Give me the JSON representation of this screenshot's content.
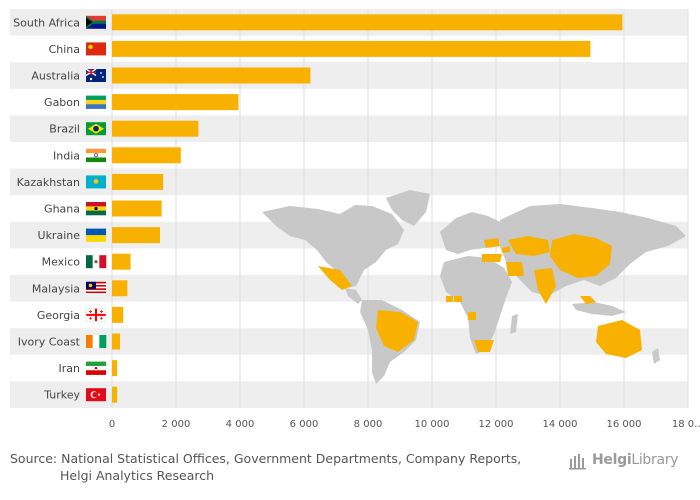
{
  "chart_data": {
    "type": "bar",
    "orientation": "horizontal",
    "categories": [
      "South Africa",
      "China",
      "Australia",
      "Gabon",
      "Brazil",
      "India",
      "Kazakhstan",
      "Ghana",
      "Ukraine",
      "Mexico",
      "Malaysia",
      "Georgia",
      "Ivory Coast",
      "Iran",
      "Turkey"
    ],
    "values": [
      15950,
      14950,
      6200,
      3950,
      2700,
      2150,
      1600,
      1550,
      1500,
      580,
      480,
      350,
      250,
      160,
      160
    ],
    "xlim": [
      0,
      18000
    ],
    "xticks": [
      0,
      2000,
      4000,
      6000,
      8000,
      10000,
      12000,
      14000,
      16000,
      18000
    ],
    "xtick_labels": [
      "0",
      "2 000",
      "4 000",
      "6 000",
      "8 000",
      "10 000",
      "12 000",
      "14 000",
      "16 000",
      "18 0…"
    ],
    "bar_color": "#F9B100",
    "highlight_color": "#F9B100",
    "map_color": "#C8C8C8",
    "row_band_color": "#EEEEEE",
    "grid": true,
    "title": "",
    "xlabel": "",
    "ylabel": ""
  },
  "footer": {
    "source_line1": "Source: National Statistical Offices, Government Departments, Company Reports,",
    "source_line2": "Helgi Analytics Research"
  },
  "logo": {
    "brand_bold": "Helgi",
    "brand_light": "Library"
  },
  "flag_icons": [
    "south-africa-flag-icon",
    "china-flag-icon",
    "australia-flag-icon",
    "gabon-flag-icon",
    "brazil-flag-icon",
    "india-flag-icon",
    "kazakhstan-flag-icon",
    "ghana-flag-icon",
    "ukraine-flag-icon",
    "mexico-flag-icon",
    "malaysia-flag-icon",
    "georgia-flag-icon",
    "ivory-coast-flag-icon",
    "iran-flag-icon",
    "turkey-flag-icon"
  ]
}
